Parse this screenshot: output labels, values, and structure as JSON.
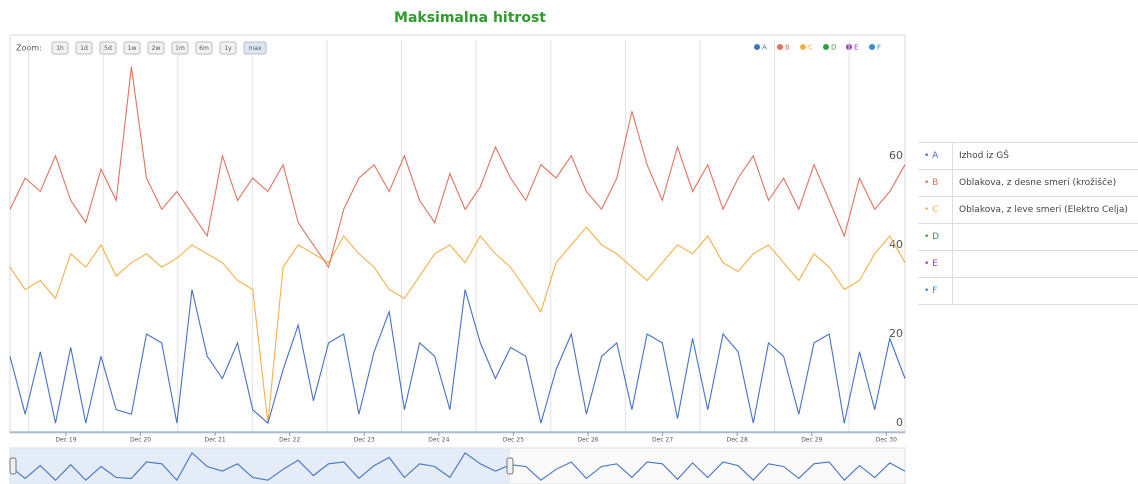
{
  "chart_data": {
    "type": "line",
    "title": "Maksimalna hitrost",
    "zoom_label": "Zoom:",
    "zoom_buttons": [
      "1h",
      "1d",
      "5d",
      "1w",
      "2w",
      "1m",
      "6m",
      "1y",
      "max"
    ],
    "x_labels": [
      "Dec 19",
      "Dec 20",
      "Dec 21",
      "Dec 22",
      "Dec 23",
      "Dec 24",
      "Dec 25",
      "Dec 26",
      "Dec 27",
      "Dec 28",
      "Dec 29",
      "Dec 30"
    ],
    "ylim": [
      -2,
      86
    ],
    "yticks": [
      0,
      20,
      40,
      60
    ],
    "grid": true,
    "series": [
      {
        "name": "A",
        "description": "Izhod iz GŠ",
        "color": "#4572c4",
        "values": [
          15,
          2,
          16,
          0,
          17,
          0,
          15,
          3,
          2,
          20,
          18,
          0,
          30,
          15,
          10,
          18,
          3,
          0,
          12,
          22,
          5,
          18,
          20,
          2,
          16,
          25,
          3,
          18,
          15,
          3,
          30,
          18,
          10,
          17,
          15,
          0,
          12,
          20,
          2,
          15,
          18,
          3,
          20,
          18,
          1,
          19,
          3,
          20,
          16,
          0,
          18,
          15,
          2,
          18,
          20,
          0,
          16,
          3,
          19,
          10
        ]
      },
      {
        "name": "B",
        "description": "Oblakova, z desne smeri (krožišče)",
        "color": "#e0735f",
        "values": [
          48,
          55,
          52,
          60,
          50,
          45,
          57,
          50,
          80,
          55,
          48,
          52,
          47,
          42,
          60,
          50,
          55,
          52,
          58,
          45,
          40,
          35,
          48,
          55,
          58,
          52,
          60,
          50,
          45,
          56,
          48,
          53,
          62,
          55,
          50,
          58,
          55,
          60,
          52,
          48,
          55,
          70,
          58,
          50,
          62,
          52,
          58,
          48,
          55,
          60,
          50,
          55,
          48,
          58,
          50,
          42,
          55,
          48,
          52,
          58
        ]
      },
      {
        "name": "C",
        "description": "Oblakova, z leve smeri (Elektro Celja)",
        "color": "#f5b04a",
        "values": [
          35,
          30,
          32,
          28,
          38,
          35,
          40,
          33,
          36,
          38,
          35,
          37,
          40,
          38,
          36,
          32,
          30,
          0,
          35,
          40,
          38,
          36,
          42,
          38,
          35,
          30,
          28,
          33,
          38,
          40,
          36,
          42,
          38,
          35,
          30,
          25,
          36,
          40,
          44,
          40,
          38,
          35,
          32,
          36,
          40,
          38,
          42,
          36,
          34,
          38,
          40,
          36,
          32,
          38,
          35,
          30,
          32,
          38,
          42,
          36
        ]
      },
      {
        "name": "D",
        "color": "#2ea043",
        "values": []
      },
      {
        "name": "E",
        "color": "#a23bc4",
        "values": []
      },
      {
        "name": "F",
        "color": "#2f8fd8",
        "values": []
      }
    ]
  }
}
